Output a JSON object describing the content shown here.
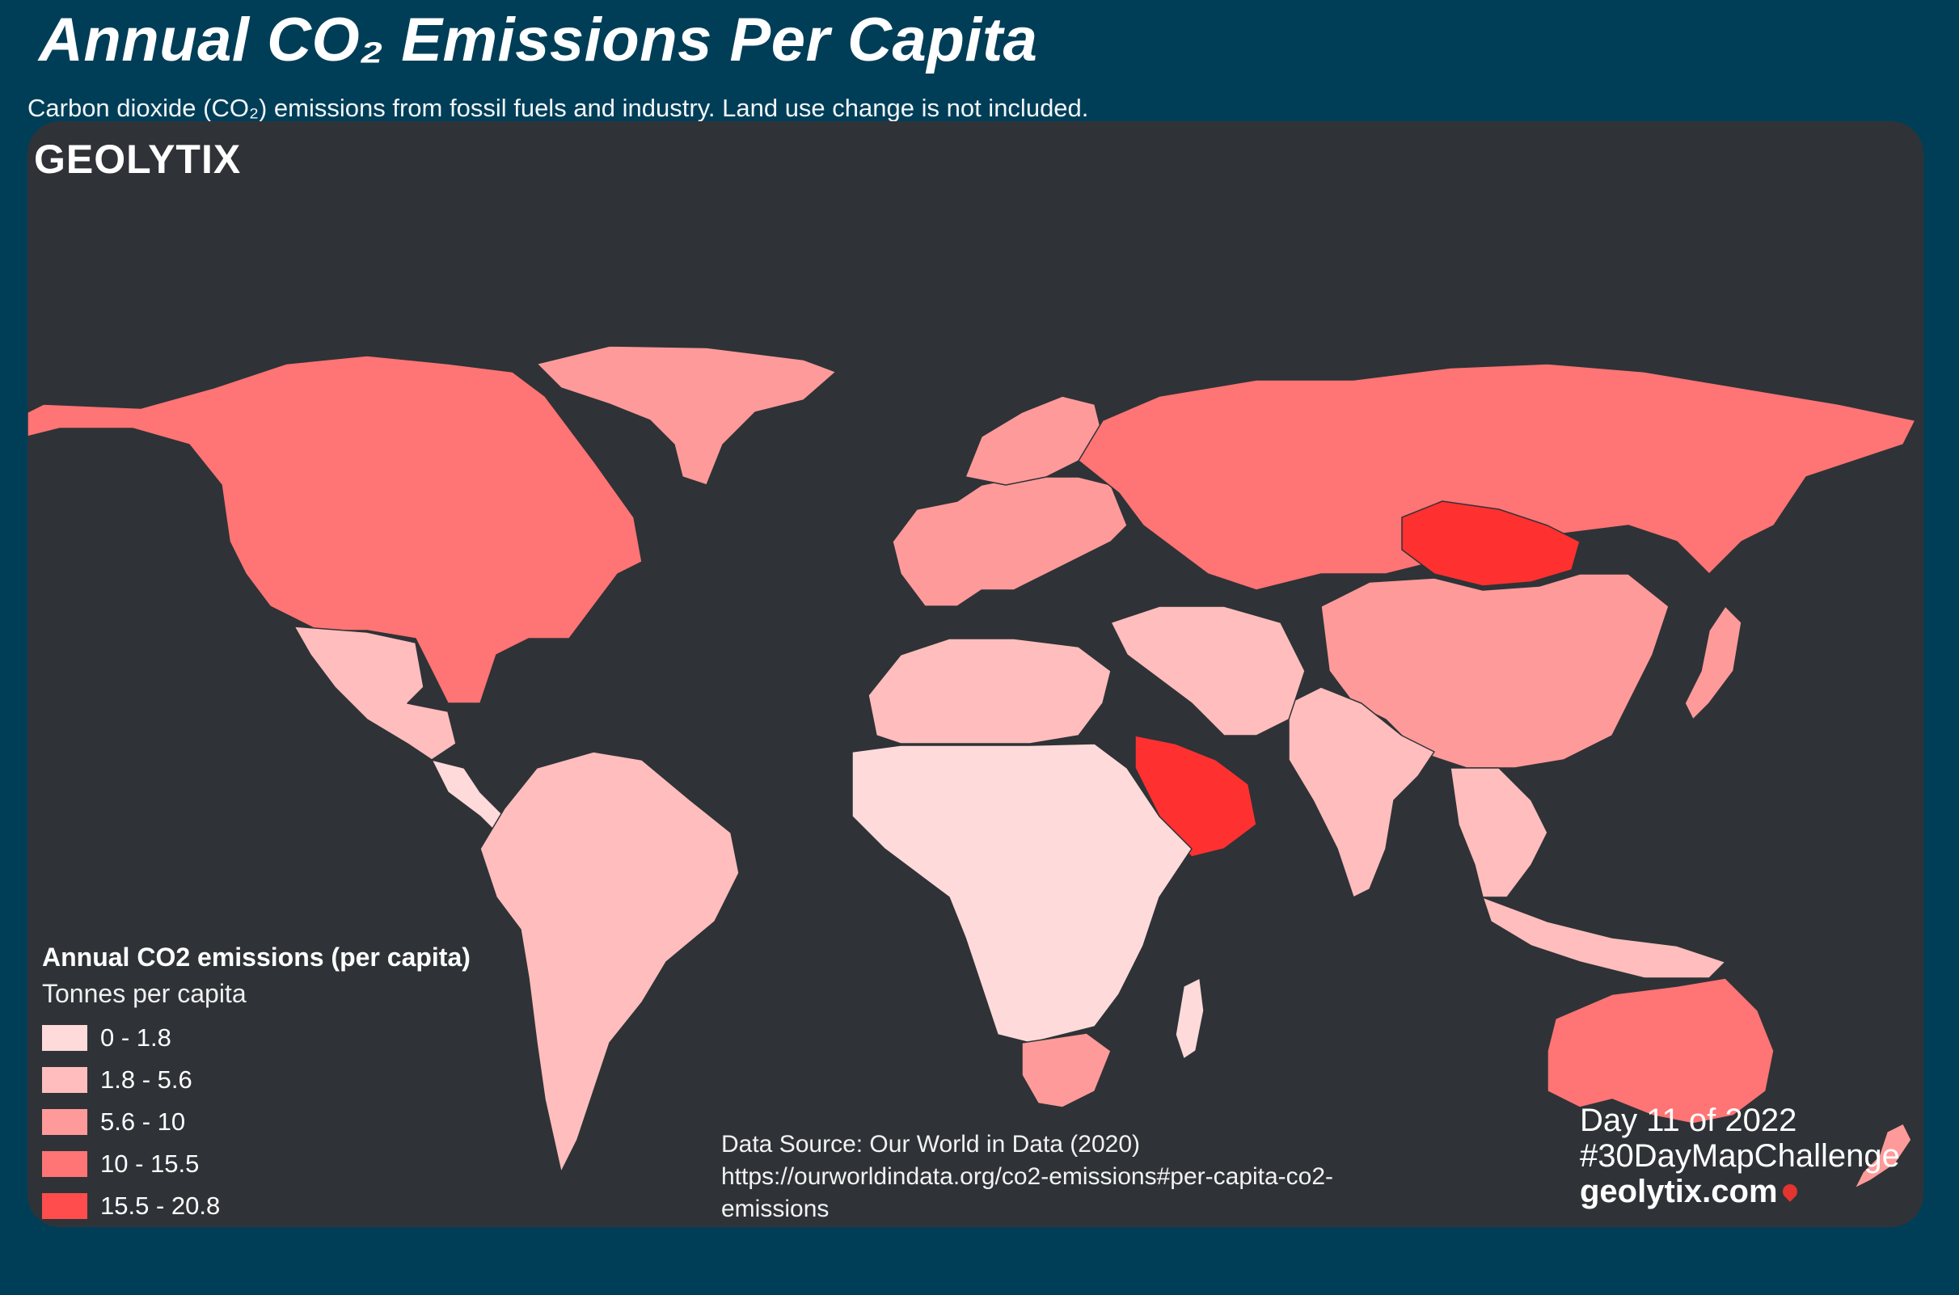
{
  "title": "Annual CO₂ Emissions Per Capita",
  "subtitle": "Carbon dioxide (CO₂) emissions from fossil fuels and industry.  Land use change is not included.",
  "logo": "GEOLYTIX",
  "legend": {
    "title": "Annual CO2 emissions (per capita)",
    "subtitle": "Tonnes per capita",
    "classes": [
      {
        "label": "0 - 1.8",
        "color": "#ffdada"
      },
      {
        "label": "1.8 - 5.6",
        "color": "#ffbdbd"
      },
      {
        "label": "5.6 - 10",
        "color": "#ff9a9a"
      },
      {
        "label": "10 - 15.5",
        "color": "#ff7474"
      },
      {
        "label": "15.5 - 20.8",
        "color": "#ff4d4d"
      }
    ]
  },
  "source": {
    "line1": "Data Source: Our World in Data (2020)",
    "line2": "https://ourworldindata.org/co2-emissions#per-capita-co2-emissions"
  },
  "challenge": {
    "day": "Day 11 of 2022",
    "hashtag": "#30DayMapChallenge",
    "site": "geolytix.com"
  },
  "colors": {
    "page_background": "#003e58",
    "panel_background": "#2f3337",
    "highest_class": "#ff3030"
  },
  "map_regions": [
    {
      "name": "north-america",
      "class": 3
    },
    {
      "name": "greenland",
      "class": 2
    },
    {
      "name": "mexico",
      "class": 1
    },
    {
      "name": "central-america",
      "class": 0
    },
    {
      "name": "south-america",
      "class": 1
    },
    {
      "name": "europe",
      "class": 2
    },
    {
      "name": "scandinavia",
      "class": 2
    },
    {
      "name": "russia",
      "class": 3
    },
    {
      "name": "mongolia",
      "class": 4
    },
    {
      "name": "china",
      "class": 2
    },
    {
      "name": "india",
      "class": 1
    },
    {
      "name": "southeast-asia",
      "class": 1
    },
    {
      "name": "saudi-arabia",
      "class": 4
    },
    {
      "name": "north-africa",
      "class": 1
    },
    {
      "name": "sub-saharan-africa",
      "class": 0
    },
    {
      "name": "south-africa",
      "class": 2
    },
    {
      "name": "australia",
      "class": 3
    },
    {
      "name": "new-zealand",
      "class": 2
    },
    {
      "name": "japan",
      "class": 2
    },
    {
      "name": "indonesia",
      "class": 1
    },
    {
      "name": "madagascar",
      "class": 0
    }
  ]
}
